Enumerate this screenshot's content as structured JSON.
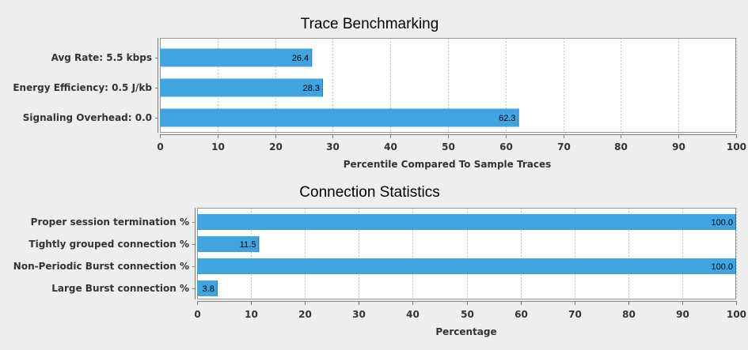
{
  "chart_data": [
    {
      "type": "bar",
      "orientation": "horizontal",
      "title": "Trace Benchmarking",
      "xlabel": "Percentile Compared To Sample Traces",
      "ylabel": "",
      "categories": [
        "Avg Rate: 5.5 kbps",
        "Energy Efficiency: 0.5 J/kb",
        "Signaling Overhead: 0.0"
      ],
      "values": [
        26.4,
        28.3,
        62.3
      ],
      "value_labels": [
        "26.4",
        "28.3",
        "62.3"
      ],
      "xlim": [
        0,
        100
      ],
      "ticks": [
        0,
        10,
        20,
        30,
        40,
        50,
        60,
        70,
        80,
        90,
        100
      ],
      "tick_labels": [
        "0",
        "10",
        "20",
        "30",
        "40",
        "50",
        "60",
        "70",
        "80",
        "90",
        "100"
      ],
      "grid": true,
      "legend": "none",
      "bar_color": "#3fa4e0",
      "plot_background": "#ffffff",
      "grid_color": "#c0c0c0"
    },
    {
      "type": "bar",
      "orientation": "horizontal",
      "title": "Connection Statistics",
      "xlabel": "Percentage",
      "ylabel": "",
      "categories": [
        "Proper session termination %",
        "Tightly grouped connection %",
        "Non-Periodic Burst connection %",
        "Large Burst connection %"
      ],
      "values": [
        100.0,
        11.5,
        100.0,
        3.8
      ],
      "value_labels": [
        "100.0",
        "11.5",
        "100.0",
        "3.8"
      ],
      "xlim": [
        0,
        100
      ],
      "ticks": [
        0,
        10,
        20,
        30,
        40,
        50,
        60,
        70,
        80,
        90,
        100
      ],
      "tick_labels": [
        "0",
        "10",
        "20",
        "30",
        "40",
        "50",
        "60",
        "70",
        "80",
        "90",
        "100"
      ],
      "grid": true,
      "legend": "none",
      "bar_color": "#3fa4e0",
      "plot_background": "#ffffff",
      "grid_color": "#c0c0c0"
    }
  ]
}
